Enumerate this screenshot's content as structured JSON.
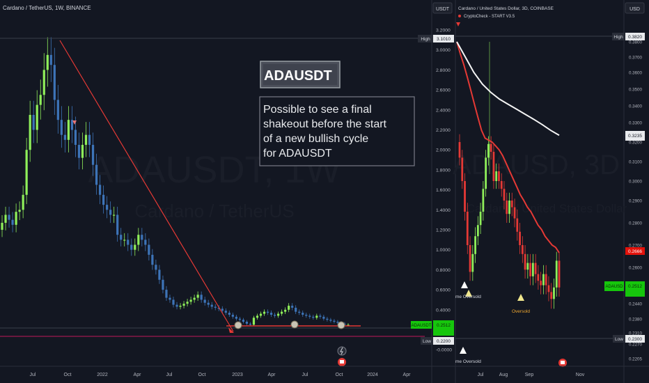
{
  "theme": {
    "bg": "#131722",
    "grid": "#1e222d",
    "axis_text": "#b2b5be",
    "divider": "#2a2e39",
    "up_green": "#8fef5a",
    "down_blue": "#3d74b8",
    "red": "#e53935",
    "white_ma": "#f5f5f5",
    "low_line": "#c2185b",
    "badge_green": "#16c60c",
    "badge_red": "#e3120b",
    "label_box": "#3a3f4b",
    "yellow": "#f0e68c"
  },
  "left_panel": {
    "header": "Cardano / TetherUS, 1W, BINANCE",
    "currency_button": "USDT",
    "watermark_big": "ADAUSDT, 1W",
    "watermark_small": "Cardano / TetherUS",
    "title_box": "ADAUSDT",
    "note_lines": [
      "Possible to see a final",
      "shakeout before the start",
      "of a new bullish cycle",
      "for ADAUSDT"
    ],
    "price_ticks": [
      "3.2000",
      "3.0000",
      "2.8000",
      "2.6000",
      "2.4000",
      "2.2000",
      "2.0000",
      "1.8000",
      "1.6000",
      "1.4000",
      "1.2000",
      "1.0000",
      "0.8000",
      "0.6000",
      "0.4000",
      "0.2000",
      "-0.0000"
    ],
    "high_label": "High",
    "high_value": "3.1010",
    "low_label": "Low",
    "low_value": "0.2200",
    "last_symbol": "ADAUSDT",
    "last_value": "0.2512",
    "time_ticks": [
      "Jul",
      "Oct",
      "2022",
      "Apr",
      "Jul",
      "Oct",
      "2023",
      "Apr",
      "Jul",
      "Oct",
      "2024",
      "Apr"
    ]
  },
  "right_panel": {
    "header": "Cardano / United States Dollar, 3D, COINBASE",
    "indicator": "CryptoCheck - START V3.5",
    "currency_button": "USD",
    "watermark_big": "ADAUSD, 3D",
    "watermark_small": "Cardano / United States Dollar",
    "price_ticks": [
      "0.3800",
      "0.3700",
      "0.3600",
      "0.3500",
      "0.3400",
      "0.3300",
      "0.3200",
      "0.3100",
      "0.3000",
      "0.2900",
      "0.2800",
      "0.2700",
      "0.2600",
      "0.2500",
      "0.2440",
      "0.2380",
      "0.2310",
      "0.2270",
      "0.2205"
    ],
    "high_label": "High",
    "high_value": "0.3820",
    "ma_value": "0.3235",
    "red_ma_value": "0.2666",
    "last_symbol": "ADAUSD",
    "last_value": "0.2512",
    "low_label": "Low",
    "low_value": "0.2300",
    "labels": [
      "me Oversold",
      "Oversold",
      "me Oversold"
    ],
    "time_ticks": [
      "Jul",
      "Aug",
      "Sep",
      "Nov"
    ]
  },
  "chart_data": [
    {
      "type": "candlestick",
      "title": "Cardano / TetherUS, 1W, BINANCE",
      "ylim": [
        -0.05,
        3.3
      ],
      "y_scale": "linear",
      "legend": "none",
      "grid": false,
      "series": [
        {
          "name": "ADAUSDT",
          "close": [
            1.2,
            1.27,
            1.35,
            1.3,
            1.25,
            1.38,
            1.4,
            1.55,
            2.0,
            2.35,
            2.2,
            2.45,
            2.55,
            2.8,
            2.95,
            2.85,
            2.5,
            2.3,
            2.15,
            2.1,
            2.3,
            2.2,
            2.05,
            1.92,
            2.05,
            2.15,
            2.05,
            1.85,
            1.65,
            1.55,
            1.45,
            1.4,
            1.35,
            1.35,
            1.15,
            1.1,
            1.1,
            1.05,
            1.0,
            1.05,
            1.15,
            1.1,
            1.05,
            0.95,
            0.85,
            0.8,
            0.7,
            0.6,
            0.52,
            0.5,
            0.45,
            0.43,
            0.44,
            0.46,
            0.48,
            0.5,
            0.52,
            0.55,
            0.5,
            0.47,
            0.45,
            0.43,
            0.42,
            0.41,
            0.39,
            0.37,
            0.35,
            0.33,
            0.31,
            0.3,
            0.28,
            0.26,
            0.25,
            0.32,
            0.34,
            0.36,
            0.38,
            0.37,
            0.35,
            0.34,
            0.36,
            0.38,
            0.4,
            0.44,
            0.42,
            0.38,
            0.37,
            0.35,
            0.34,
            0.33,
            0.32,
            0.34,
            0.33,
            0.31,
            0.3,
            0.29,
            0.28,
            0.27,
            0.26,
            0.25,
            0.25
          ]
        }
      ],
      "annotations": [
        "High 3.1010",
        "Low 0.2200",
        "ADAUSDT 0.2512",
        "trend line from cycle high to 2023 low",
        "horizontal support line near 0.25"
      ]
    },
    {
      "type": "candlestick",
      "title": "Cardano / United States Dollar, 3D, COINBASE",
      "ylim": [
        0.2205,
        0.386
      ],
      "y_scale": "linear",
      "legend": "none",
      "grid": false,
      "series": [
        {
          "name": "ADAUSD",
          "close": [
            0.312,
            0.3,
            0.285,
            0.27,
            0.258,
            0.266,
            0.274,
            0.279,
            0.285,
            0.296,
            0.312,
            0.319,
            0.315,
            0.3,
            0.305,
            0.3,
            0.296,
            0.29,
            0.284,
            0.29,
            0.287,
            0.282,
            0.276,
            0.27,
            0.266,
            0.259,
            0.262,
            0.256,
            0.262,
            0.257,
            0.254,
            0.252,
            0.257,
            0.252,
            0.249,
            0.246,
            0.251,
            0.263,
            0.251
          ]
        },
        {
          "name": "red moving average",
          "close": [
            0.38,
            0.372,
            0.365,
            0.357,
            0.349,
            0.341,
            0.333,
            0.326,
            0.322,
            0.321,
            0.32,
            0.318,
            0.316,
            0.313,
            0.309,
            0.305,
            0.301,
            0.297,
            0.293,
            0.29,
            0.287,
            0.285,
            0.282,
            0.279,
            0.277,
            0.274,
            0.272,
            0.27,
            0.269,
            0.2666
          ]
        },
        {
          "name": "white moving average",
          "close": [
            0.38,
            0.37,
            0.36,
            0.353,
            0.348,
            0.344,
            0.341,
            0.338,
            0.335,
            0.332,
            0.329,
            0.326,
            0.3235
          ]
        }
      ],
      "annotations": [
        "High 0.3820",
        "0.3235",
        "0.2666",
        "ADAUSD 0.2512",
        "Low 0.2300",
        "Oversold"
      ]
    }
  ]
}
